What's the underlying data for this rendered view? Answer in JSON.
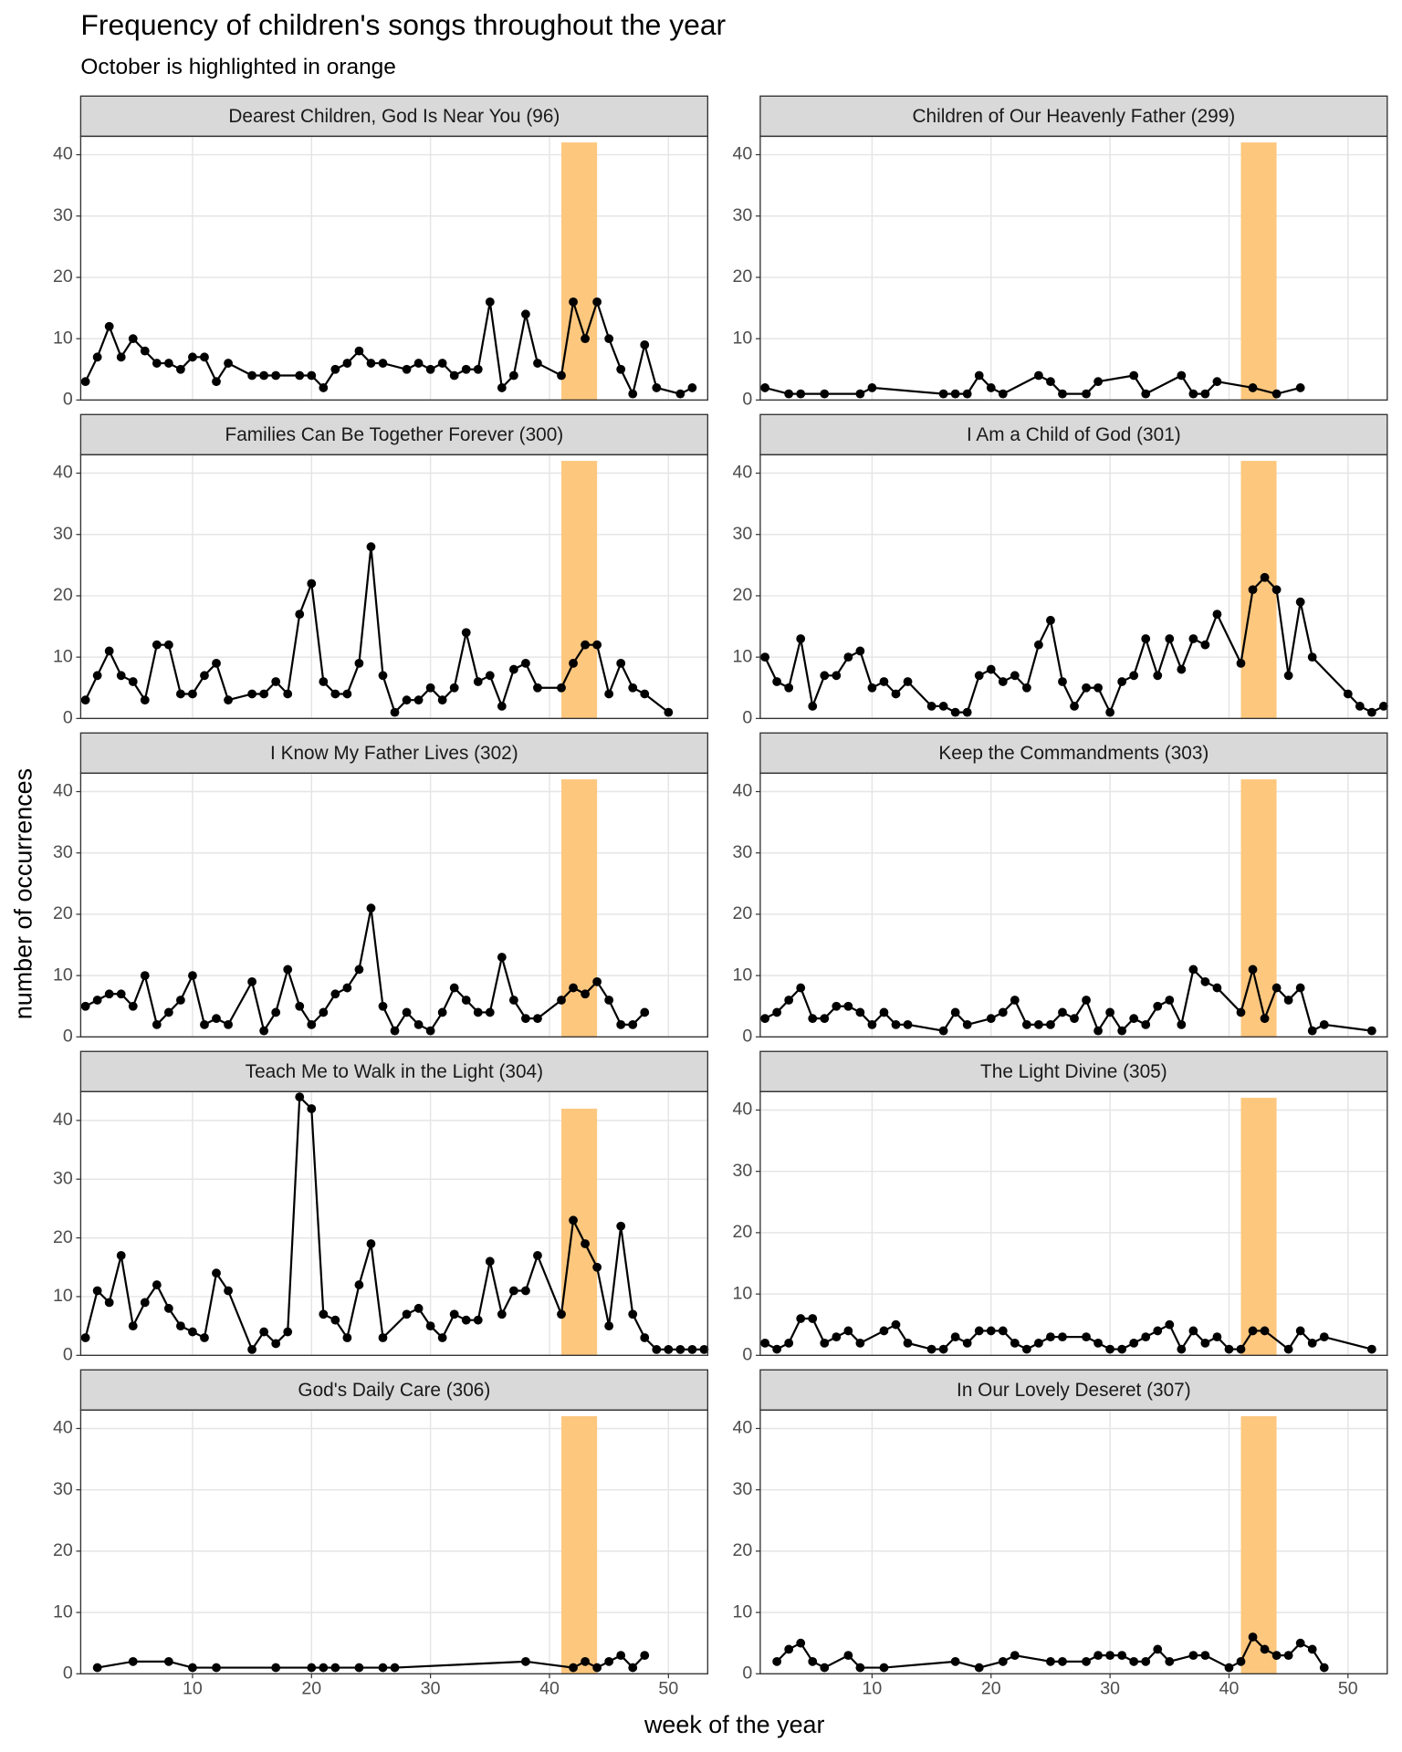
{
  "chart_data": {
    "type": "line",
    "title": "Frequency of children's songs throughout the year",
    "subtitle": "October is highlighted in orange",
    "xlabel": "week of the year",
    "ylabel": "number of occurrences",
    "xlim": [
      0.6,
      53.3
    ],
    "xticks": [
      10,
      20,
      30,
      40,
      50
    ],
    "grid": true,
    "color": "#000000",
    "highlight": {
      "xmin": 41,
      "xmax": 44,
      "ymax": 42,
      "color": "#fdc77e"
    },
    "facets": [
      {
        "title": "Dearest Children, God Is Near You (96)",
        "ylim": [
          0,
          43
        ],
        "yticks": [
          0,
          10,
          20,
          30,
          40
        ],
        "x": [
          1,
          2,
          3,
          4,
          5,
          6,
          7,
          8,
          9,
          10,
          11,
          12,
          13,
          15,
          16,
          17,
          19,
          20,
          21,
          22,
          23,
          24,
          25,
          26,
          28,
          29,
          30,
          31,
          32,
          33,
          34,
          35,
          36,
          37,
          38,
          39,
          41,
          42,
          43,
          44,
          45,
          46,
          47,
          48,
          49,
          51,
          52
        ],
        "values": [
          3,
          7,
          12,
          7,
          10,
          8,
          6,
          6,
          5,
          7,
          7,
          3,
          6,
          4,
          4,
          4,
          4,
          4,
          2,
          5,
          6,
          8,
          6,
          6,
          5,
          6,
          5,
          6,
          4,
          5,
          5,
          16,
          2,
          4,
          14,
          6,
          4,
          16,
          10,
          16,
          10,
          5,
          1,
          9,
          2,
          1,
          2
        ]
      },
      {
        "title": "Children of Our Heavenly Father (299)",
        "ylim": [
          0,
          43
        ],
        "yticks": [
          0,
          10,
          20,
          30,
          40
        ],
        "x": [
          1,
          3,
          4,
          6,
          9,
          10,
          16,
          17,
          18,
          19,
          20,
          21,
          24,
          25,
          26,
          28,
          29,
          32,
          33,
          36,
          37,
          38,
          39,
          42,
          44,
          46
        ],
        "values": [
          2,
          1,
          1,
          1,
          1,
          2,
          1,
          1,
          1,
          4,
          2,
          1,
          4,
          3,
          1,
          1,
          3,
          4,
          1,
          4,
          1,
          1,
          3,
          2,
          1,
          2
        ]
      },
      {
        "title": "Families Can Be Together Forever (300)",
        "ylim": [
          0,
          43
        ],
        "yticks": [
          0,
          10,
          20,
          30,
          40
        ],
        "x": [
          1,
          2,
          3,
          4,
          5,
          6,
          7,
          8,
          9,
          10,
          11,
          12,
          13,
          15,
          16,
          17,
          18,
          19,
          20,
          21,
          22,
          23,
          24,
          25,
          26,
          27,
          28,
          29,
          30,
          31,
          32,
          33,
          34,
          35,
          36,
          37,
          38,
          39,
          41,
          42,
          43,
          44,
          45,
          46,
          47,
          48,
          50
        ],
        "values": [
          3,
          7,
          11,
          7,
          6,
          3,
          12,
          12,
          4,
          4,
          7,
          9,
          3,
          4,
          4,
          6,
          4,
          17,
          22,
          6,
          4,
          4,
          9,
          28,
          7,
          1,
          3,
          3,
          5,
          3,
          5,
          14,
          6,
          7,
          2,
          8,
          9,
          5,
          5,
          9,
          12,
          12,
          4,
          9,
          5,
          4,
          1
        ]
      },
      {
        "title": "I Am a Child of God (301)",
        "ylim": [
          0,
          43
        ],
        "yticks": [
          0,
          10,
          20,
          30,
          40
        ],
        "x": [
          1,
          2,
          3,
          4,
          5,
          6,
          7,
          8,
          9,
          10,
          11,
          12,
          13,
          15,
          16,
          17,
          18,
          19,
          20,
          21,
          22,
          23,
          24,
          25,
          26,
          27,
          28,
          29,
          30,
          31,
          32,
          33,
          34,
          35,
          36,
          37,
          38,
          39,
          41,
          42,
          43,
          44,
          45,
          46,
          47,
          50,
          51,
          52,
          53
        ],
        "values": [
          10,
          6,
          5,
          13,
          2,
          7,
          7,
          10,
          11,
          5,
          6,
          4,
          6,
          2,
          2,
          1,
          1,
          7,
          8,
          6,
          7,
          5,
          12,
          16,
          6,
          2,
          5,
          5,
          1,
          6,
          7,
          13,
          7,
          13,
          8,
          13,
          12,
          17,
          9,
          21,
          23,
          21,
          7,
          19,
          10,
          4,
          2,
          1,
          2
        ]
      },
      {
        "title": "I Know My Father Lives (302)",
        "ylim": [
          0,
          43
        ],
        "yticks": [
          0,
          10,
          20,
          30,
          40
        ],
        "x": [
          1,
          2,
          3,
          4,
          5,
          6,
          7,
          8,
          9,
          10,
          11,
          12,
          13,
          15,
          16,
          17,
          18,
          19,
          20,
          21,
          22,
          23,
          24,
          25,
          26,
          27,
          28,
          29,
          30,
          31,
          32,
          33,
          34,
          35,
          36,
          37,
          38,
          39,
          41,
          42,
          43,
          44,
          45,
          46,
          47,
          48
        ],
        "values": [
          5,
          6,
          7,
          7,
          5,
          10,
          2,
          4,
          6,
          10,
          2,
          3,
          2,
          9,
          1,
          4,
          11,
          5,
          2,
          4,
          7,
          8,
          11,
          21,
          5,
          1,
          4,
          2,
          1,
          4,
          8,
          6,
          4,
          4,
          13,
          6,
          3,
          3,
          6,
          8,
          7,
          9,
          6,
          2,
          2,
          4
        ]
      },
      {
        "title": "Keep the Commandments (303)",
        "ylim": [
          0,
          43
        ],
        "yticks": [
          0,
          10,
          20,
          30,
          40
        ],
        "x": [
          1,
          2,
          3,
          4,
          5,
          6,
          7,
          8,
          9,
          10,
          11,
          12,
          13,
          16,
          17,
          18,
          20,
          21,
          22,
          23,
          24,
          25,
          26,
          27,
          28,
          29,
          30,
          31,
          32,
          33,
          34,
          35,
          36,
          37,
          38,
          39,
          41,
          42,
          43,
          44,
          45,
          46,
          47,
          48,
          52
        ],
        "values": [
          3,
          4,
          6,
          8,
          3,
          3,
          5,
          5,
          4,
          2,
          4,
          2,
          2,
          1,
          4,
          2,
          3,
          4,
          6,
          2,
          2,
          2,
          4,
          3,
          6,
          1,
          4,
          1,
          3,
          2,
          5,
          6,
          2,
          11,
          9,
          8,
          4,
          11,
          3,
          8,
          6,
          8,
          1,
          2,
          1
        ]
      },
      {
        "title": "Teach Me to Walk in the Light (304)",
        "ylim": [
          0,
          44.9
        ],
        "yticks": [
          0,
          10,
          20,
          30,
          40
        ],
        "x": [
          1,
          2,
          3,
          4,
          5,
          6,
          7,
          8,
          9,
          10,
          11,
          12,
          13,
          15,
          16,
          17,
          18,
          19,
          20,
          21,
          22,
          23,
          24,
          25,
          26,
          28,
          29,
          30,
          31,
          32,
          33,
          34,
          35,
          36,
          37,
          38,
          39,
          41,
          42,
          43,
          44,
          45,
          46,
          47,
          48,
          49,
          50,
          51,
          52,
          53
        ],
        "values": [
          3,
          11,
          9,
          17,
          5,
          9,
          12,
          8,
          5,
          4,
          3,
          14,
          11,
          1,
          4,
          2,
          4,
          44,
          42,
          7,
          6,
          3,
          12,
          19,
          3,
          7,
          8,
          5,
          3,
          7,
          6,
          6,
          16,
          7,
          11,
          11,
          17,
          7,
          23,
          19,
          15,
          5,
          22,
          7,
          3,
          1,
          1,
          1,
          1,
          1
        ]
      },
      {
        "title": "The Light Divine (305)",
        "ylim": [
          0,
          43
        ],
        "yticks": [
          0,
          10,
          20,
          30,
          40
        ],
        "x": [
          1,
          2,
          3,
          4,
          5,
          6,
          7,
          8,
          9,
          11,
          12,
          13,
          15,
          16,
          17,
          18,
          19,
          20,
          21,
          22,
          23,
          24,
          25,
          26,
          28,
          29,
          30,
          31,
          32,
          33,
          34,
          35,
          36,
          37,
          38,
          39,
          40,
          41,
          42,
          43,
          45,
          46,
          47,
          48,
          52
        ],
        "values": [
          2,
          1,
          2,
          6,
          6,
          2,
          3,
          4,
          2,
          4,
          5,
          2,
          1,
          1,
          3,
          2,
          4,
          4,
          4,
          2,
          1,
          2,
          3,
          3,
          3,
          2,
          1,
          1,
          2,
          3,
          4,
          5,
          1,
          4,
          2,
          3,
          1,
          1,
          4,
          4,
          1,
          4,
          2,
          3,
          1
        ]
      },
      {
        "title": "God's Daily Care (306)",
        "ylim": [
          0,
          43
        ],
        "yticks": [
          0,
          10,
          20,
          30,
          40
        ],
        "x": [
          2,
          5,
          8,
          10,
          12,
          17,
          20,
          21,
          22,
          24,
          26,
          27,
          38,
          42,
          43,
          44,
          45,
          46,
          47,
          48
        ],
        "values": [
          1,
          2,
          2,
          1,
          1,
          1,
          1,
          1,
          1,
          1,
          1,
          1,
          2,
          1,
          2,
          1,
          2,
          3,
          1,
          3
        ]
      },
      {
        "title": "In Our Lovely Deseret (307)",
        "ylim": [
          0,
          43
        ],
        "yticks": [
          0,
          10,
          20,
          30,
          40
        ],
        "x": [
          2,
          3,
          4,
          5,
          6,
          8,
          9,
          11,
          17,
          19,
          21,
          22,
          25,
          26,
          28,
          29,
          30,
          31,
          32,
          33,
          34,
          35,
          37,
          38,
          40,
          41,
          42,
          43,
          44,
          45,
          46,
          47,
          48
        ],
        "values": [
          2,
          4,
          5,
          2,
          1,
          3,
          1,
          1,
          2,
          1,
          2,
          3,
          2,
          2,
          2,
          3,
          3,
          3,
          2,
          2,
          4,
          2,
          3,
          3,
          1,
          2,
          6,
          4,
          3,
          3,
          5,
          4,
          1
        ]
      }
    ]
  }
}
